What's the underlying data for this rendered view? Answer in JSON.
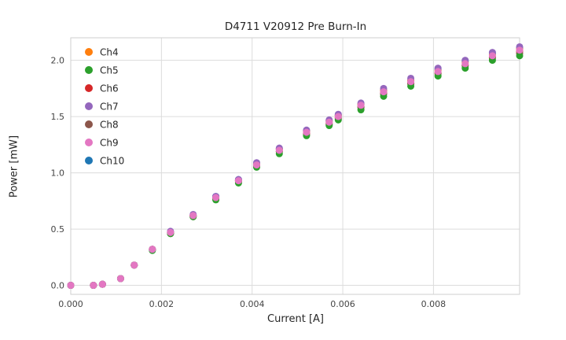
{
  "chart_data": {
    "type": "scatter",
    "title": "D4711 V20912 Pre Burn-In",
    "xlabel": "Current [A]",
    "ylabel": "Power [mW]",
    "xlim": [
      0.0,
      0.0099
    ],
    "ylim": [
      -0.08,
      2.2
    ],
    "grid": true,
    "legend_position": "upper left",
    "xticks": {
      "values": [
        0.0,
        0.002,
        0.004,
        0.006,
        0.008
      ],
      "labels": [
        "0.000",
        "0.002",
        "0.004",
        "0.006",
        "0.008"
      ]
    },
    "yticks": {
      "values": [
        0.0,
        0.5,
        1.0,
        1.5,
        2.0
      ],
      "labels": [
        "0.0",
        "0.5",
        "1.0",
        "1.5",
        "2.0"
      ]
    },
    "x": [
      0.0,
      0.0005,
      0.0007,
      0.0011,
      0.0014,
      0.0018,
      0.0022,
      0.0027,
      0.0032,
      0.0037,
      0.0041,
      0.0046,
      0.0052,
      0.0057,
      0.0059,
      0.0064,
      0.0069,
      0.0075,
      0.0081,
      0.0087,
      0.0093,
      0.0099
    ],
    "series": [
      {
        "name": "Ch4",
        "color": "#ff7f0e",
        "values": [
          0.0,
          0.0,
          0.01,
          0.06,
          0.18,
          0.32,
          0.47,
          0.62,
          0.78,
          0.93,
          1.08,
          1.21,
          1.37,
          1.46,
          1.51,
          1.61,
          1.73,
          1.82,
          1.91,
          1.98,
          2.05,
          2.1
        ]
      },
      {
        "name": "Ch5",
        "color": "#2ca02c",
        "values": [
          0.0,
          0.0,
          0.01,
          0.06,
          0.18,
          0.31,
          0.46,
          0.61,
          0.76,
          0.91,
          1.05,
          1.17,
          1.33,
          1.42,
          1.47,
          1.56,
          1.68,
          1.77,
          1.86,
          1.93,
          2.0,
          2.04
        ]
      },
      {
        "name": "Ch6",
        "color": "#d62728",
        "values": [
          0.0,
          0.0,
          0.01,
          0.06,
          0.18,
          0.32,
          0.47,
          0.62,
          0.78,
          0.93,
          1.06,
          1.19,
          1.35,
          1.44,
          1.49,
          1.59,
          1.71,
          1.8,
          1.89,
          1.96,
          2.03,
          2.08
        ]
      },
      {
        "name": "Ch7",
        "color": "#9467bd",
        "values": [
          0.0,
          0.0,
          0.01,
          0.06,
          0.18,
          0.32,
          0.48,
          0.63,
          0.79,
          0.94,
          1.09,
          1.22,
          1.38,
          1.47,
          1.52,
          1.62,
          1.75,
          1.84,
          1.93,
          2.0,
          2.07,
          2.12
        ]
      },
      {
        "name": "Ch8",
        "color": "#8c564b",
        "values": [
          0.0,
          0.0,
          0.01,
          0.06,
          0.18,
          0.32,
          0.46,
          0.61,
          0.77,
          0.92,
          1.06,
          1.19,
          1.34,
          1.43,
          1.48,
          1.58,
          1.7,
          1.79,
          1.88,
          1.95,
          2.02,
          2.06
        ]
      },
      {
        "name": "Ch9",
        "color": "#e377c2",
        "values": [
          0.0,
          0.0,
          0.01,
          0.06,
          0.18,
          0.32,
          0.47,
          0.62,
          0.78,
          0.93,
          1.07,
          1.2,
          1.36,
          1.45,
          1.5,
          1.6,
          1.72,
          1.81,
          1.9,
          1.97,
          2.04,
          2.09
        ]
      },
      {
        "name": "Ch10",
        "color": "#1f77b4",
        "values": [
          0.0,
          0.0,
          0.01,
          0.06,
          0.18,
          0.32,
          0.47,
          0.62,
          0.79,
          0.94,
          1.08,
          1.21,
          1.37,
          1.46,
          1.51,
          1.61,
          1.73,
          1.82,
          1.92,
          1.99,
          2.06,
          2.11
        ]
      }
    ]
  }
}
